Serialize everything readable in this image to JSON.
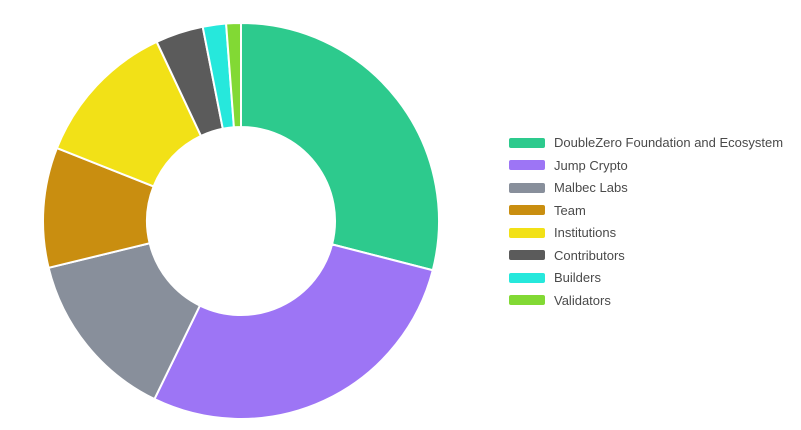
{
  "page": {
    "background_color": "#ffffff"
  },
  "chart_data": {
    "type": "pie",
    "subtype": "donut",
    "title": "",
    "legend_position": "right",
    "start_angle_deg": 0,
    "direction": "clockwise",
    "inner_radius_ratio": 0.475,
    "slice_border_color": "#ffffff",
    "slice_border_width": 2,
    "value_note": "percent share, estimated from arc angles (no numeric labels shown in image)",
    "series": [
      {
        "name": "DoubleZero Foundation and Ecosystem",
        "value": 29.0,
        "color": "#2dca8d"
      },
      {
        "name": "Jump Crypto",
        "value": 28.2,
        "color": "#9d75f5"
      },
      {
        "name": "Malbec Labs",
        "value": 14.0,
        "color": "#888f9b"
      },
      {
        "name": "Team",
        "value": 9.8,
        "color": "#c98e10"
      },
      {
        "name": "Institutions",
        "value": 12.0,
        "color": "#f2e117"
      },
      {
        "name": "Contributors",
        "value": 3.9,
        "color": "#5b5b5b"
      },
      {
        "name": "Builders",
        "value": 1.9,
        "color": "#26e8dc"
      },
      {
        "name": "Validators",
        "value": 1.2,
        "color": "#82d934"
      }
    ],
    "legend_text_color": "#4a4a4a"
  }
}
